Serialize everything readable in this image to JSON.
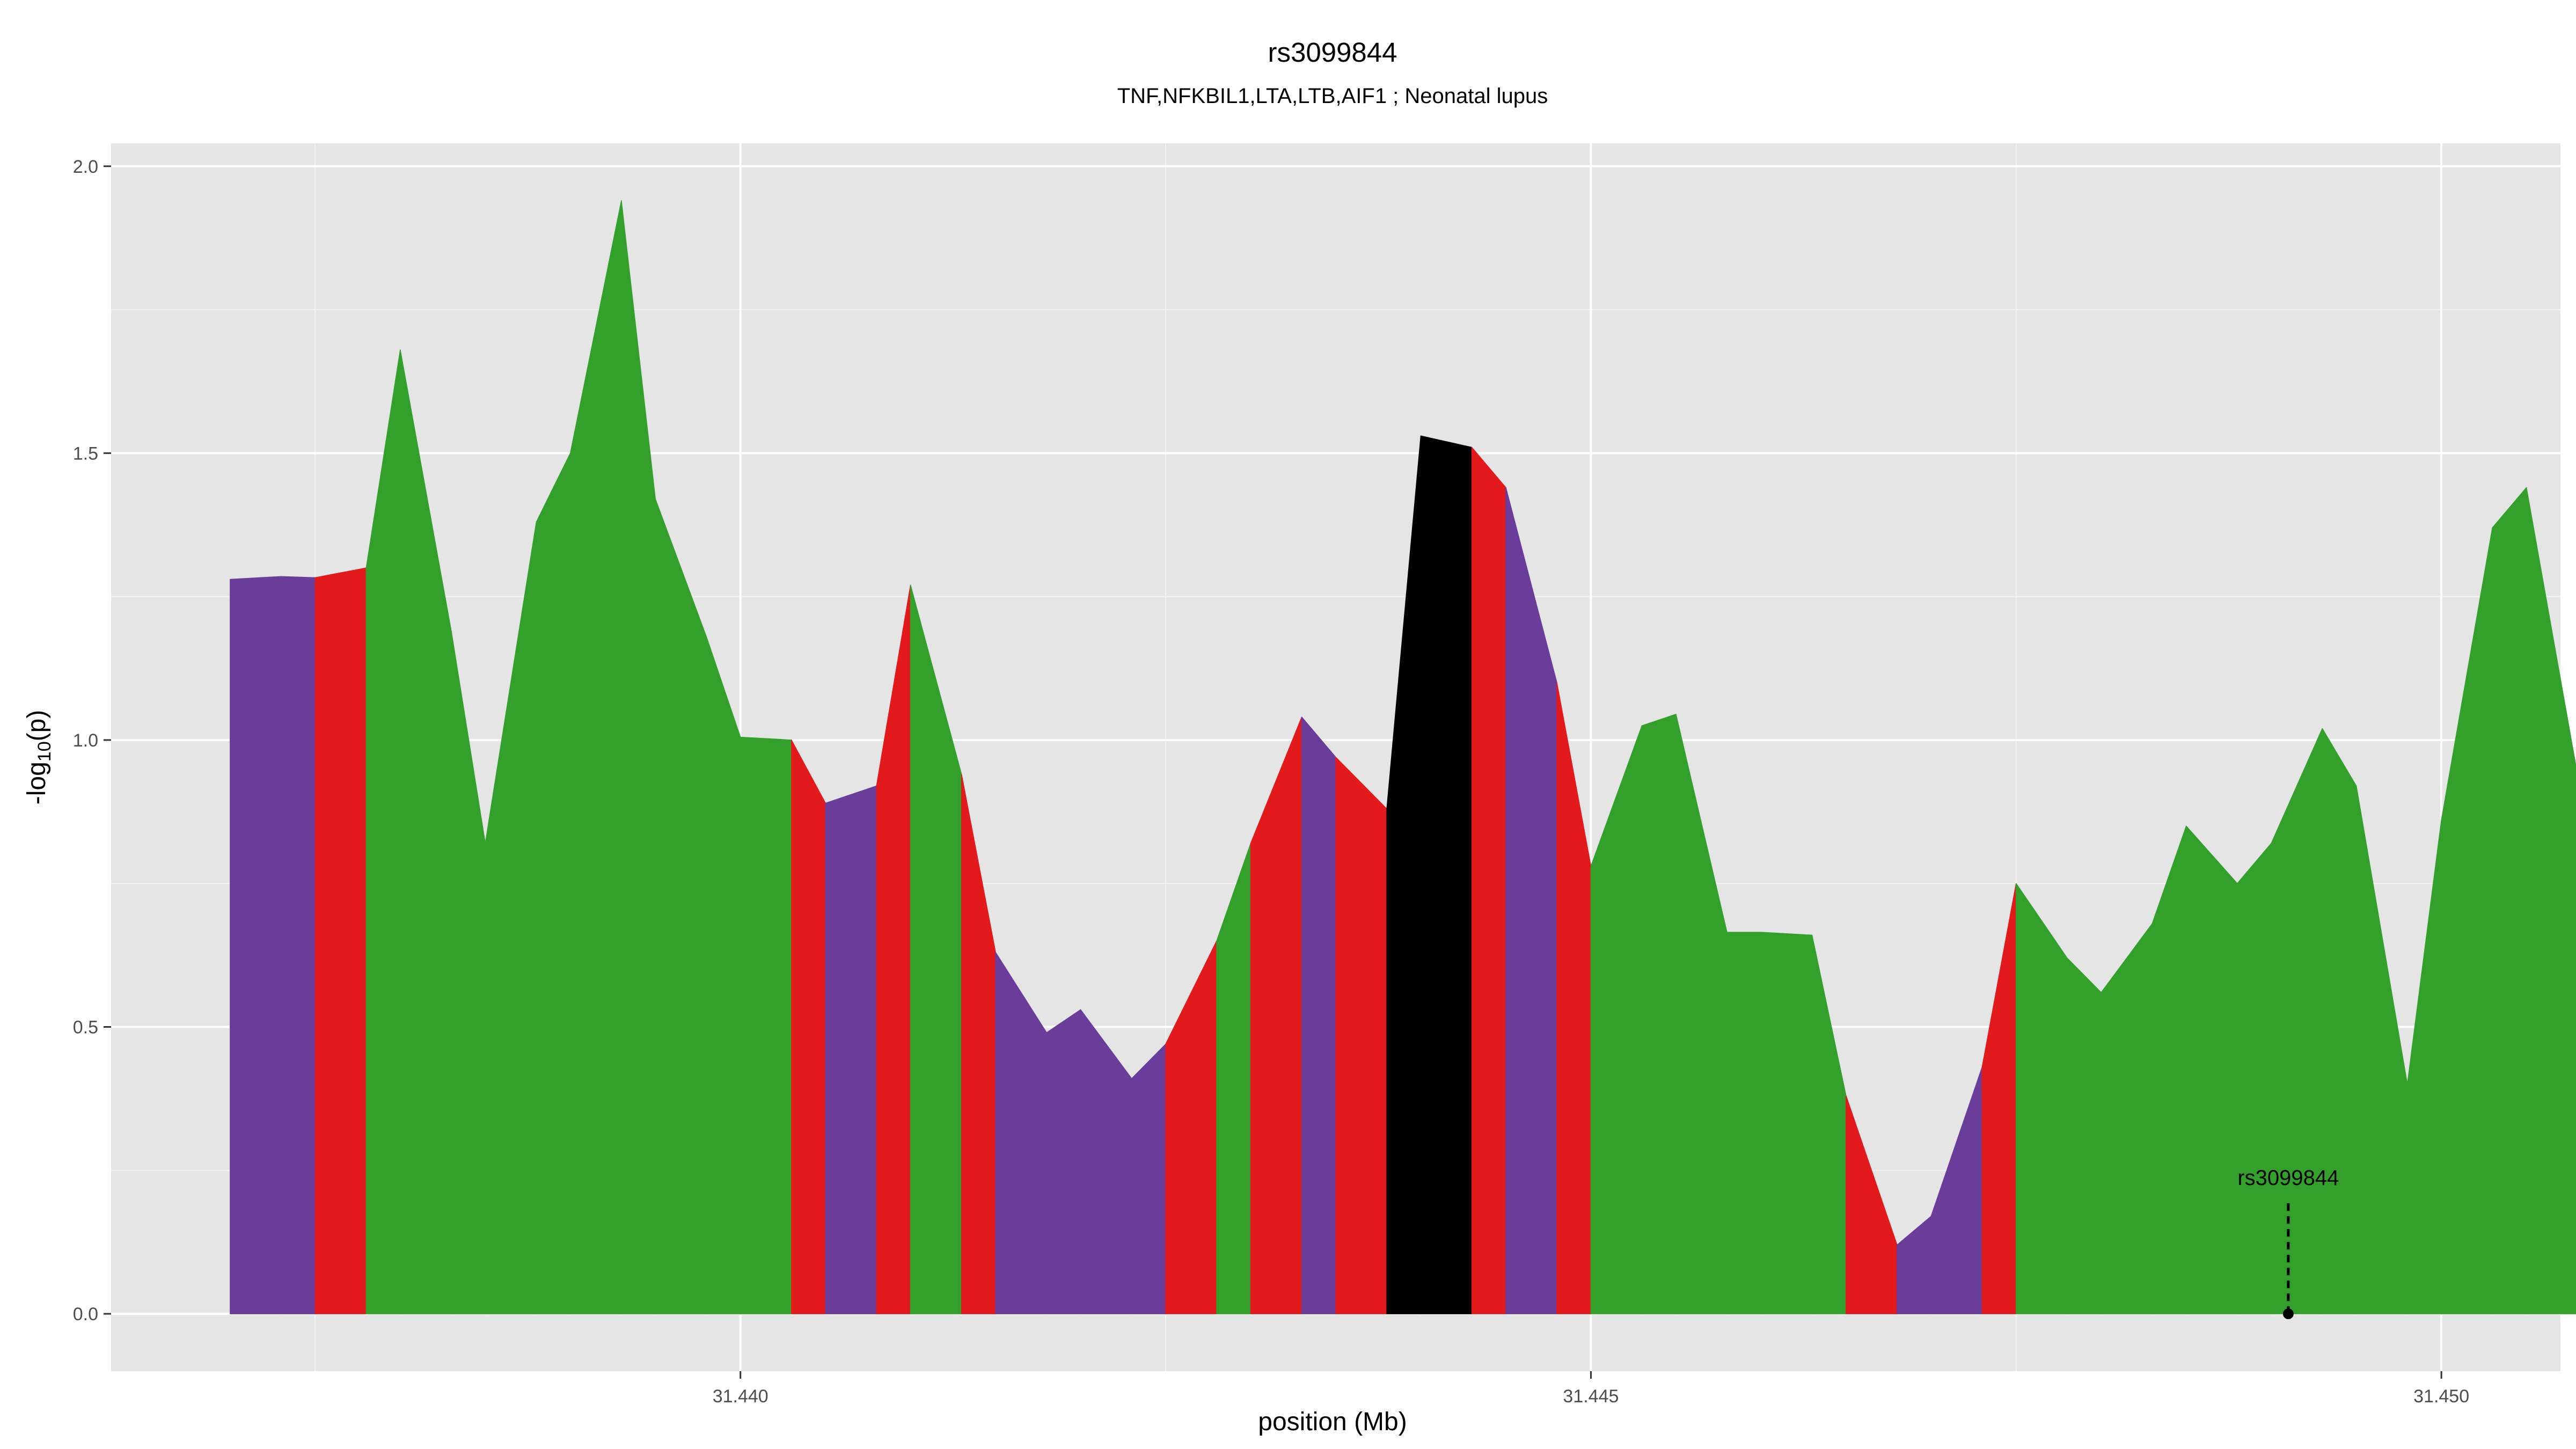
{
  "chart_data": {
    "type": "area",
    "title": "rs3099844",
    "subtitle": "TNF,NFKBIL1,LTA,LTB,AIF1 ; Neonatal lupus",
    "xlabel": "position (Mb)",
    "ylabel": "-log10(p)",
    "ylabel_parts": {
      "prefix": "-log",
      "sub": "10",
      "suffix": "(p)"
    },
    "xlim": [
      31.4363,
      31.4507
    ],
    "ylim": [
      -0.1,
      2.04
    ],
    "x_ticks": [
      31.44,
      31.445,
      31.45
    ],
    "x_tick_labels": [
      "31.440",
      "31.445",
      "31.450"
    ],
    "y_ticks": [
      0.0,
      0.5,
      1.0,
      1.5,
      2.0
    ],
    "y_tick_labels": [
      "0.0",
      "0.5",
      "1.0",
      "1.5",
      "2.0"
    ],
    "grid": true,
    "colors": {
      "purple": "#6a3d9a",
      "red": "#e31a1c",
      "green": "#33a02c",
      "black": "#000000"
    },
    "points": [
      [
        31.437,
        1.28
      ],
      [
        31.4373,
        1.285
      ],
      [
        31.4375,
        1.283
      ],
      [
        31.4378,
        1.3
      ],
      [
        31.438,
        1.68
      ],
      [
        31.4383,
        1.19
      ],
      [
        31.4385,
        0.82
      ],
      [
        31.4388,
        1.38
      ],
      [
        31.439,
        1.5
      ],
      [
        31.4393,
        1.94
      ],
      [
        31.4395,
        1.42
      ],
      [
        31.4398,
        1.18
      ],
      [
        31.44,
        1.005
      ],
      [
        31.4403,
        1.0
      ],
      [
        31.4405,
        0.89
      ],
      [
        31.4408,
        0.92
      ],
      [
        31.441,
        1.27
      ],
      [
        31.4413,
        0.94
      ],
      [
        31.4415,
        0.63
      ],
      [
        31.4418,
        0.49
      ],
      [
        31.442,
        0.53
      ],
      [
        31.4423,
        0.41
      ],
      [
        31.4425,
        0.47
      ],
      [
        31.4428,
        0.65
      ],
      [
        31.443,
        0.82
      ],
      [
        31.4433,
        1.04
      ],
      [
        31.4435,
        0.97
      ],
      [
        31.4438,
        0.88
      ],
      [
        31.444,
        1.53
      ],
      [
        31.4443,
        1.51
      ],
      [
        31.4445,
        1.44
      ],
      [
        31.4448,
        1.1
      ],
      [
        31.445,
        0.78
      ],
      [
        31.4453,
        1.025
      ],
      [
        31.4455,
        1.045
      ],
      [
        31.4458,
        0.665
      ],
      [
        31.446,
        0.665
      ],
      [
        31.4463,
        0.66
      ],
      [
        31.4465,
        0.38
      ],
      [
        31.4468,
        0.12
      ],
      [
        31.447,
        0.17
      ],
      [
        31.4473,
        0.43
      ],
      [
        31.4475,
        0.75
      ],
      [
        31.4478,
        0.62
      ],
      [
        31.448,
        0.56
      ],
      [
        31.4483,
        0.68
      ],
      [
        31.4485,
        0.85
      ],
      [
        31.4488,
        0.75
      ],
      [
        31.449,
        0.82
      ],
      [
        31.4493,
        1.02
      ],
      [
        31.4495,
        0.92
      ],
      [
        31.4498,
        0.4
      ],
      [
        31.45,
        0.86
      ],
      [
        31.4503,
        1.37
      ],
      [
        31.4505,
        1.44
      ],
      [
        31.4508,
        0.94
      ]
    ],
    "segment_colors": [
      "purple",
      "purple",
      "red",
      "green",
      "green",
      "green",
      "green",
      "green",
      "green",
      "green",
      "green",
      "green",
      "green",
      "red",
      "purple",
      "red",
      "green",
      "red",
      "purple",
      "purple",
      "purple",
      "purple",
      "red",
      "green",
      "red",
      "purple",
      "red",
      "black",
      "black",
      "red",
      "purple",
      "red",
      "green",
      "green",
      "green",
      "green",
      "green",
      "green",
      "red",
      "purple",
      "purple",
      "red",
      "green",
      "green",
      "green",
      "green",
      "green",
      "green",
      "green",
      "green",
      "green",
      "green",
      "green",
      "green",
      "green"
    ],
    "annotation": {
      "label": "rs3099844",
      "x": 31.4491,
      "y": 0.0
    }
  }
}
